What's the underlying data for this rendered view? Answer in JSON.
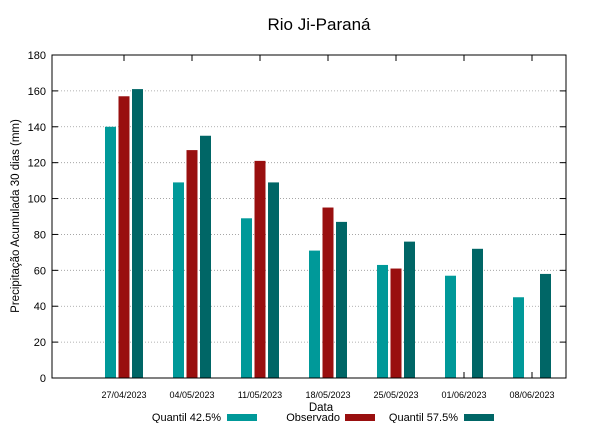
{
  "chart_data": {
    "type": "bar",
    "title": "Rio Ji-Paraná",
    "xlabel": "Data",
    "ylabel": "Precipitação Acumulada 30 dias (mm)",
    "ylim": [
      0,
      180
    ],
    "yticks": [
      0,
      20,
      40,
      60,
      80,
      100,
      120,
      140,
      160,
      180
    ],
    "grid": true,
    "legend_position": "bottom",
    "categories": [
      "27/04/2023",
      "04/05/2023",
      "11/05/2023",
      "18/05/2023",
      "25/05/2023",
      "01/06/2023",
      "08/06/2023"
    ],
    "series": [
      {
        "name": "Quantil 42.5%",
        "color": "#009999",
        "values": [
          140,
          109,
          89,
          71,
          63,
          57,
          45
        ]
      },
      {
        "name": "Observado",
        "color": "#990f0f",
        "values": [
          157,
          127,
          121,
          95,
          61,
          null,
          null
        ]
      },
      {
        "name": "Quantil 57.5%",
        "color": "#006666",
        "values": [
          161,
          135,
          109,
          87,
          76,
          72,
          58
        ]
      }
    ]
  }
}
